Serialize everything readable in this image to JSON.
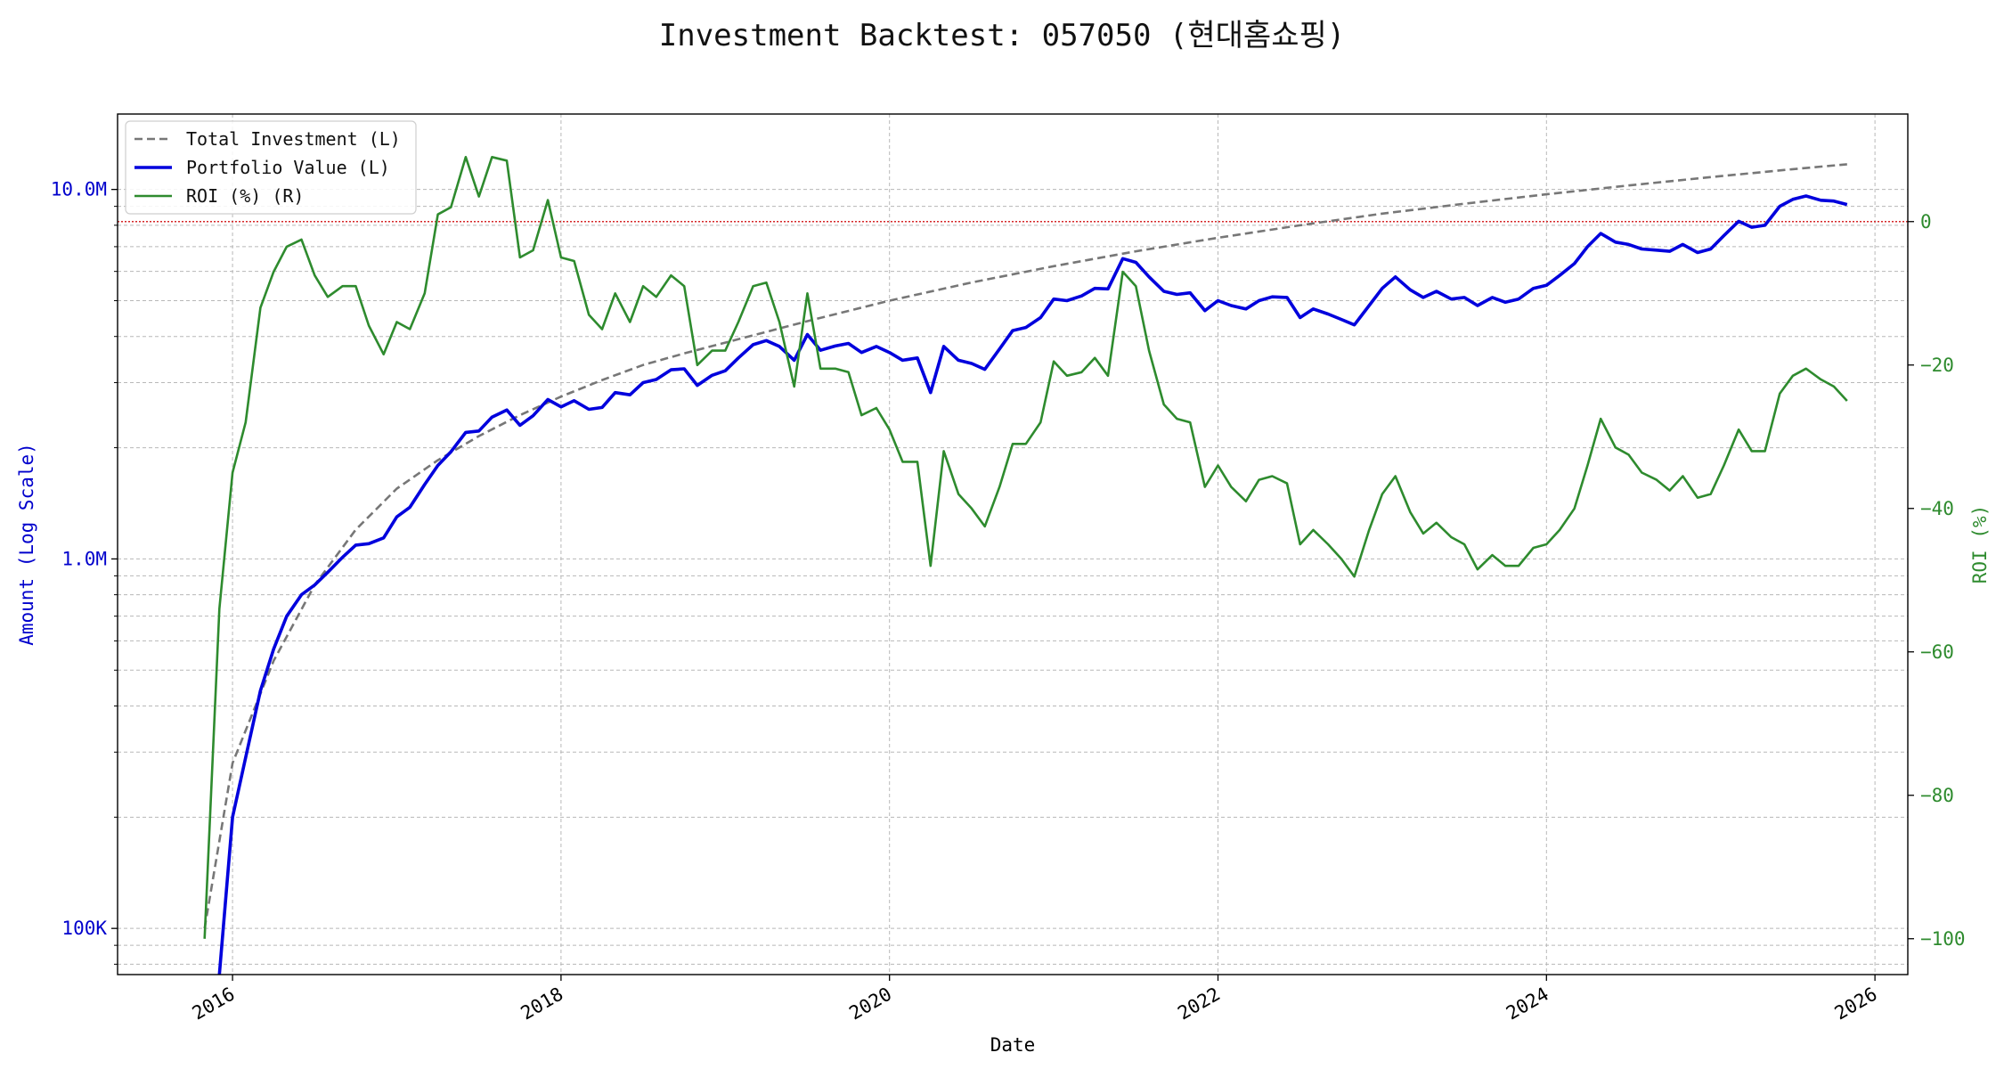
{
  "chart_data": {
    "type": "line",
    "title": "Investment Backtest: 057050 (현대홈쇼핑)",
    "xlabel": "Date",
    "ylabel_left": "Amount (Log Scale)",
    "ylabel_right": "ROI (%)",
    "left_scale": "log",
    "xlim": [
      2015.3,
      2026.2
    ],
    "ylim_left": [
      75000,
      16000000
    ],
    "ylim_right": [
      -105,
      15
    ],
    "x_ticks": [
      2016,
      2018,
      2020,
      2022,
      2024,
      2026
    ],
    "x_tick_labels": [
      "2016",
      "2018",
      "2020",
      "2022",
      "2024",
      "2026"
    ],
    "left_major_ticks": [
      100000,
      1000000,
      10000000
    ],
    "left_major_tick_labels": [
      "100K",
      "1.0M",
      "10.0M"
    ],
    "right_ticks": [
      0,
      -20,
      -40,
      -60,
      -80,
      -100
    ],
    "right_tick_labels": [
      "0",
      "−20",
      "−40",
      "−60",
      "−80",
      "−100"
    ],
    "grid": true,
    "legend_position": "top-left",
    "zero_reference_line": {
      "axis": "right",
      "value": 0,
      "color": "#d62728",
      "style": "dotted"
    },
    "colors": {
      "total_investment": "#777777",
      "portfolio_value": "#0000dd",
      "roi": "#2e8b2e",
      "left_axis": "#0000cc",
      "right_axis": "#2e8b2e"
    },
    "series": [
      {
        "name": "Total Investment (L)",
        "axis": "left",
        "style": "dashed",
        "x": [
          2015.83,
          2016.0,
          2016.25,
          2016.5,
          2016.75,
          2017.0,
          2017.25,
          2017.5,
          2017.75,
          2018.0,
          2018.25,
          2018.5,
          2018.75,
          2019.0,
          2019.5,
          2020.0,
          2020.5,
          2021.0,
          2021.5,
          2022.0,
          2022.5,
          2023.0,
          2023.5,
          2024.0,
          2024.5,
          2025.0,
          2025.5,
          2025.83
        ],
        "y": [
          100000,
          280000,
          530000,
          850000,
          1200000,
          1550000,
          1850000,
          2150000,
          2450000,
          2750000,
          3050000,
          3350000,
          3600000,
          3850000,
          4400000,
          5000000,
          5600000,
          6200000,
          6800000,
          7400000,
          8000000,
          8600000,
          9150000,
          9700000,
          10250000,
          10800000,
          11350000,
          11700000
        ]
      },
      {
        "name": "Portfolio Value (L)",
        "axis": "left",
        "style": "solid",
        "x": [
          2015.92,
          2016.0,
          2016.08,
          2016.17,
          2016.25,
          2016.33,
          2016.42,
          2016.5,
          2016.58,
          2016.67,
          2016.75,
          2016.83,
          2016.92,
          2017.0,
          2017.08,
          2017.17,
          2017.25,
          2017.33,
          2017.42,
          2017.5,
          2017.58,
          2017.67,
          2017.75,
          2017.83,
          2017.92,
          2018.0,
          2018.08,
          2018.17,
          2018.25,
          2018.33,
          2018.42,
          2018.5,
          2018.58,
          2018.67,
          2018.75,
          2018.83,
          2018.92,
          2019.0,
          2019.08,
          2019.17,
          2019.25,
          2019.33,
          2019.42,
          2019.5,
          2019.58,
          2019.67,
          2019.75,
          2019.83,
          2019.92,
          2020.0,
          2020.08,
          2020.17,
          2020.25,
          2020.33,
          2020.42,
          2020.5,
          2020.58,
          2020.67,
          2020.75,
          2020.83,
          2020.92,
          2021.0,
          2021.08,
          2021.17,
          2021.25,
          2021.33,
          2021.42,
          2021.5,
          2021.58,
          2021.67,
          2021.75,
          2021.83,
          2021.92,
          2022.0,
          2022.08,
          2022.17,
          2022.25,
          2022.33,
          2022.42,
          2022.5,
          2022.58,
          2022.67,
          2022.75,
          2022.83,
          2022.92,
          2023.0,
          2023.08,
          2023.17,
          2023.25,
          2023.33,
          2023.42,
          2023.5,
          2023.58,
          2023.67,
          2023.75,
          2023.83,
          2023.92,
          2024.0,
          2024.08,
          2024.17,
          2024.25,
          2024.33,
          2024.42,
          2024.5,
          2024.58,
          2024.67,
          2024.75,
          2024.83,
          2024.92,
          2025.0,
          2025.08,
          2025.17,
          2025.25,
          2025.33,
          2025.42,
          2025.5,
          2025.58,
          2025.67,
          2025.75,
          2025.83
        ],
        "y": [
          75000,
          200000,
          290000,
          440000,
          570000,
          700000,
          800000,
          850000,
          920000,
          1010000,
          1090000,
          1100000,
          1140000,
          1300000,
          1380000,
          1590000,
          1790000,
          1950000,
          2200000,
          2220000,
          2420000,
          2530000,
          2300000,
          2440000,
          2700000,
          2580000,
          2680000,
          2540000,
          2570000,
          2820000,
          2780000,
          3000000,
          3060000,
          3250000,
          3270000,
          2950000,
          3140000,
          3230000,
          3500000,
          3800000,
          3900000,
          3760000,
          3450000,
          4050000,
          3670000,
          3770000,
          3830000,
          3620000,
          3760000,
          3620000,
          3450000,
          3500000,
          2820000,
          3760000,
          3450000,
          3380000,
          3260000,
          3700000,
          4150000,
          4230000,
          4500000,
          5050000,
          5000000,
          5150000,
          5400000,
          5380000,
          6500000,
          6350000,
          5800000,
          5300000,
          5200000,
          5250000,
          4700000,
          5000000,
          4850000,
          4750000,
          5000000,
          5120000,
          5100000,
          4500000,
          4750000,
          4600000,
          4450000,
          4300000,
          4850000,
          5400000,
          5800000,
          5350000,
          5100000,
          5300000,
          5050000,
          5100000,
          4850000,
          5100000,
          4950000,
          5050000,
          5400000,
          5500000,
          5850000,
          6300000,
          7000000,
          7600000,
          7200000,
          7100000,
          6900000,
          6850000,
          6800000,
          7100000,
          6750000,
          6900000,
          7500000,
          8200000,
          7900000,
          8000000,
          9000000,
          9400000,
          9600000,
          9350000,
          9300000,
          9100000
        ]
      },
      {
        "name": "ROI (%) (R)",
        "axis": "right",
        "style": "solid",
        "x": [
          2015.83,
          2015.92,
          2016.0,
          2016.08,
          2016.17,
          2016.25,
          2016.33,
          2016.42,
          2016.5,
          2016.58,
          2016.67,
          2016.75,
          2016.83,
          2016.92,
          2017.0,
          2017.08,
          2017.17,
          2017.25,
          2017.33,
          2017.42,
          2017.5,
          2017.58,
          2017.67,
          2017.75,
          2017.83,
          2017.92,
          2018.0,
          2018.08,
          2018.17,
          2018.25,
          2018.33,
          2018.42,
          2018.5,
          2018.58,
          2018.67,
          2018.75,
          2018.83,
          2018.92,
          2019.0,
          2019.08,
          2019.17,
          2019.25,
          2019.33,
          2019.42,
          2019.5,
          2019.58,
          2019.67,
          2019.75,
          2019.83,
          2019.92,
          2020.0,
          2020.08,
          2020.17,
          2020.25,
          2020.33,
          2020.42,
          2020.5,
          2020.58,
          2020.67,
          2020.75,
          2020.83,
          2020.92,
          2021.0,
          2021.08,
          2021.17,
          2021.25,
          2021.33,
          2021.42,
          2021.5,
          2021.58,
          2021.67,
          2021.75,
          2021.83,
          2021.92,
          2022.0,
          2022.08,
          2022.17,
          2022.25,
          2022.33,
          2022.42,
          2022.5,
          2022.58,
          2022.67,
          2022.75,
          2022.83,
          2022.92,
          2023.0,
          2023.08,
          2023.17,
          2023.25,
          2023.33,
          2023.42,
          2023.5,
          2023.58,
          2023.67,
          2023.75,
          2023.83,
          2023.92,
          2024.0,
          2024.08,
          2024.17,
          2024.25,
          2024.33,
          2024.42,
          2024.5,
          2024.58,
          2024.67,
          2024.75,
          2024.83,
          2024.92,
          2025.0,
          2025.08,
          2025.17,
          2025.25,
          2025.33,
          2025.42,
          2025.5,
          2025.58,
          2025.67,
          2025.75,
          2025.83
        ],
        "y": [
          -100,
          -54,
          -35,
          -28,
          -12,
          -7,
          -3.5,
          -2.5,
          -7.5,
          -10.5,
          -9,
          -9,
          -14.5,
          -18.5,
          -14,
          -15,
          -10,
          1,
          2,
          9,
          3.5,
          9,
          8.5,
          -5,
          -4,
          3,
          -5,
          -5.5,
          -13,
          -15,
          -10,
          -14,
          -9,
          -10.5,
          -7.5,
          -9,
          -20,
          -18,
          -18,
          -14,
          -9,
          -8.5,
          -14,
          -23,
          -10,
          -20.5,
          -20.5,
          -21,
          -27,
          -26,
          -29,
          -33.5,
          -33.5,
          -48,
          -32,
          -38,
          -40,
          -42.5,
          -37,
          -31,
          -31,
          -28,
          -19.5,
          -21.5,
          -21,
          -19,
          -21.5,
          -7,
          -9,
          -18,
          -25.5,
          -27.5,
          -28,
          -37,
          -34,
          -37,
          -39,
          -36,
          -35.5,
          -36.5,
          -45,
          -43,
          -45,
          -47,
          -49.5,
          -43,
          -38,
          -35.5,
          -40.5,
          -43.5,
          -42,
          -44,
          -45,
          -48.5,
          -46.5,
          -48,
          -48,
          -45.5,
          -45,
          -43,
          -40,
          -34,
          -27.5,
          -31.5,
          -32.5,
          -35,
          -36,
          -37.5,
          -35.5,
          -38.5,
          -38,
          -34,
          -29,
          -32,
          -32,
          -24,
          -21.5,
          -20.5,
          -22,
          -23,
          -25
        ]
      }
    ]
  }
}
